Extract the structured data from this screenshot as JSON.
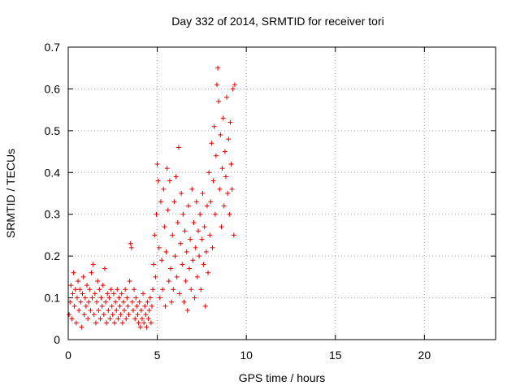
{
  "chart_data": {
    "type": "scatter",
    "title": "Day 332 of 2014, SRMTID for receiver tori",
    "xlabel": "GPS time / hours",
    "ylabel": "SRMTID / TECUs",
    "xlim": [
      0,
      24
    ],
    "ylim": [
      0,
      0.7
    ],
    "x_ticks": [
      0,
      5,
      10,
      15,
      20
    ],
    "y_ticks": [
      0,
      0.1,
      0.2,
      0.3,
      0.4,
      0.5,
      0.6,
      0.7
    ],
    "x_tick_labels": [
      "0",
      "5",
      "10",
      "15",
      "20"
    ],
    "y_tick_labels": [
      "0",
      "0.1",
      "0.2",
      "0.3",
      "0.4",
      "0.5",
      "0.6",
      "0.7"
    ],
    "grid": true,
    "marker": "+",
    "series_color": "#e00000",
    "series": [
      {
        "name": "SRMTID",
        "points": [
          [
            0.05,
            0.06
          ],
          [
            0.1,
            0.09
          ],
          [
            0.15,
            0.13
          ],
          [
            0.2,
            0.05
          ],
          [
            0.25,
            0.11
          ],
          [
            0.3,
            0.16
          ],
          [
            0.35,
            0.08
          ],
          [
            0.4,
            0.12
          ],
          [
            0.45,
            0.04
          ],
          [
            0.5,
            0.1
          ],
          [
            0.55,
            0.14
          ],
          [
            0.6,
            0.07
          ],
          [
            0.65,
            0.12
          ],
          [
            0.7,
            0.09
          ],
          [
            0.75,
            0.03
          ],
          [
            0.8,
            0.11
          ],
          [
            0.85,
            0.15
          ],
          [
            0.9,
            0.06
          ],
          [
            0.95,
            0.1
          ],
          [
            1.0,
            0.08
          ],
          [
            1.05,
            0.13
          ],
          [
            1.1,
            0.05
          ],
          [
            1.15,
            0.09
          ],
          [
            1.2,
            0.12
          ],
          [
            1.25,
            0.07
          ],
          [
            1.3,
            0.16
          ],
          [
            1.35,
            0.1
          ],
          [
            1.4,
            0.18
          ],
          [
            1.45,
            0.06
          ],
          [
            1.5,
            0.11
          ],
          [
            1.55,
            0.04
          ],
          [
            1.6,
            0.09
          ],
          [
            1.65,
            0.14
          ],
          [
            1.7,
            0.07
          ],
          [
            1.75,
            0.12
          ],
          [
            1.8,
            0.05
          ],
          [
            1.85,
            0.1
          ],
          [
            1.9,
            0.08
          ],
          [
            1.95,
            0.13
          ],
          [
            2.0,
            0.06
          ],
          [
            2.05,
            0.17
          ],
          [
            2.1,
            0.09
          ],
          [
            2.15,
            0.04
          ],
          [
            2.2,
            0.11
          ],
          [
            2.25,
            0.07
          ],
          [
            2.3,
            0.1
          ],
          [
            2.35,
            0.05
          ],
          [
            2.4,
            0.12
          ],
          [
            2.45,
            0.08
          ],
          [
            2.5,
            0.06
          ],
          [
            2.55,
            0.11
          ],
          [
            2.6,
            0.04
          ],
          [
            2.65,
            0.09
          ],
          [
            2.7,
            0.07
          ],
          [
            2.75,
            0.12
          ],
          [
            2.8,
            0.05
          ],
          [
            2.85,
            0.1
          ],
          [
            2.9,
            0.08
          ],
          [
            2.95,
            0.06
          ],
          [
            3.0,
            0.11
          ],
          [
            3.05,
            0.04
          ],
          [
            3.1,
            0.09
          ],
          [
            3.15,
            0.07
          ],
          [
            3.2,
            0.12
          ],
          [
            3.25,
            0.05
          ],
          [
            3.3,
            0.1
          ],
          [
            3.35,
            0.08
          ],
          [
            3.4,
            0.06
          ],
          [
            3.45,
            0.14
          ],
          [
            3.5,
            0.23
          ],
          [
            3.55,
            0.22
          ],
          [
            3.6,
            0.09
          ],
          [
            3.65,
            0.07
          ],
          [
            3.7,
            0.12
          ],
          [
            3.75,
            0.05
          ],
          [
            3.8,
            0.1
          ],
          [
            3.85,
            0.08
          ],
          [
            3.9,
            0.06
          ],
          [
            3.95,
            0.04
          ],
          [
            4.0,
            0.09
          ],
          [
            4.05,
            0.03
          ],
          [
            4.1,
            0.07
          ],
          [
            4.15,
            0.05
          ],
          [
            4.2,
            0.11
          ],
          [
            4.25,
            0.04
          ],
          [
            4.3,
            0.08
          ],
          [
            4.35,
            0.06
          ],
          [
            4.4,
            0.03
          ],
          [
            4.45,
            0.09
          ],
          [
            4.5,
            0.05
          ],
          [
            4.55,
            0.07
          ],
          [
            4.6,
            0.1
          ],
          [
            4.65,
            0.04
          ],
          [
            4.7,
            0.08
          ],
          [
            4.75,
            0.12
          ],
          [
            4.8,
            0.18
          ],
          [
            4.85,
            0.25
          ],
          [
            4.9,
            0.15
          ],
          [
            4.95,
            0.3
          ],
          [
            5.0,
            0.42
          ],
          [
            5.05,
            0.38
          ],
          [
            5.1,
            0.22
          ],
          [
            5.15,
            0.1
          ],
          [
            5.2,
            0.33
          ],
          [
            5.25,
            0.19
          ],
          [
            5.3,
            0.12
          ],
          [
            5.35,
            0.36
          ],
          [
            5.4,
            0.27
          ],
          [
            5.45,
            0.08
          ],
          [
            5.5,
            0.21
          ],
          [
            5.55,
            0.41
          ],
          [
            5.6,
            0.31
          ],
          [
            5.65,
            0.14
          ],
          [
            5.7,
            0.38
          ],
          [
            5.75,
            0.17
          ],
          [
            5.8,
            0.09
          ],
          [
            5.85,
            0.25
          ],
          [
            5.9,
            0.12
          ],
          [
            5.95,
            0.33
          ],
          [
            6.0,
            0.2
          ],
          [
            6.05,
            0.39
          ],
          [
            6.1,
            0.15
          ],
          [
            6.15,
            0.28
          ],
          [
            6.2,
            0.46
          ],
          [
            6.25,
            0.11
          ],
          [
            6.3,
            0.23
          ],
          [
            6.35,
            0.35
          ],
          [
            6.4,
            0.18
          ],
          [
            6.45,
            0.3
          ],
          [
            6.5,
            0.09
          ],
          [
            6.55,
            0.26
          ],
          [
            6.6,
            0.14
          ],
          [
            6.65,
            0.21
          ],
          [
            6.7,
            0.07
          ],
          [
            6.75,
            0.32
          ],
          [
            6.8,
            0.17
          ],
          [
            6.85,
            0.24
          ],
          [
            6.9,
            0.12
          ],
          [
            6.95,
            0.36
          ],
          [
            7.0,
            0.19
          ],
          [
            7.05,
            0.28
          ],
          [
            7.1,
            0.1
          ],
          [
            7.15,
            0.22
          ],
          [
            7.2,
            0.33
          ],
          [
            7.25,
            0.15
          ],
          [
            7.3,
            0.26
          ],
          [
            7.35,
            0.2
          ],
          [
            7.4,
            0.3
          ],
          [
            7.45,
            0.12
          ],
          [
            7.5,
            0.24
          ],
          [
            7.55,
            0.35
          ],
          [
            7.6,
            0.18
          ],
          [
            7.65,
            0.27
          ],
          [
            7.7,
            0.08
          ],
          [
            7.75,
            0.21
          ],
          [
            7.8,
            0.32
          ],
          [
            7.85,
            0.16
          ],
          [
            7.9,
            0.4
          ],
          [
            7.95,
            0.25
          ],
          [
            8.0,
            0.33
          ],
          [
            8.05,
            0.47
          ],
          [
            8.1,
            0.22
          ],
          [
            8.15,
            0.38
          ],
          [
            8.2,
            0.51
          ],
          [
            8.25,
            0.3
          ],
          [
            8.3,
            0.44
          ],
          [
            8.35,
            0.61
          ],
          [
            8.4,
            0.65
          ],
          [
            8.45,
            0.57
          ],
          [
            8.5,
            0.36
          ],
          [
            8.55,
            0.49
          ],
          [
            8.6,
            0.27
          ],
          [
            8.65,
            0.41
          ],
          [
            8.7,
            0.53
          ],
          [
            8.75,
            0.32
          ],
          [
            8.8,
            0.45
          ],
          [
            8.85,
            0.39
          ],
          [
            8.9,
            0.58
          ],
          [
            8.95,
            0.35
          ],
          [
            9.0,
            0.48
          ],
          [
            9.05,
            0.3
          ],
          [
            9.1,
            0.52
          ],
          [
            9.15,
            0.42
          ],
          [
            9.2,
            0.36
          ],
          [
            9.25,
            0.6
          ],
          [
            9.3,
            0.25
          ],
          [
            9.35,
            0.61
          ]
        ]
      }
    ]
  }
}
